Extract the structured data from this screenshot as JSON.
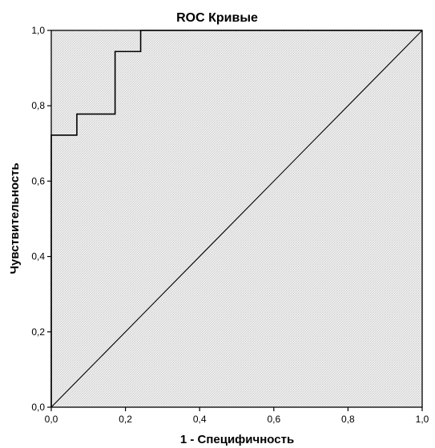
{
  "chart_data": {
    "type": "line",
    "title": "ROC Кривые",
    "xlabel": "1 - Специфичность",
    "ylabel": "Чувствительность",
    "xlim": [
      0,
      1
    ],
    "ylim": [
      0,
      1
    ],
    "x_ticks": [
      "0,0",
      "0,2",
      "0,4",
      "0,6",
      "0,8",
      "1,0"
    ],
    "y_ticks": [
      "0,0",
      "0,2",
      "0,4",
      "0,6",
      "0,8",
      "1,0"
    ],
    "grid": false,
    "legend": "none",
    "series": [
      {
        "style": "step",
        "x": [
          0.0,
          0.0,
          0.069,
          0.069,
          0.172,
          0.172,
          0.241,
          0.241,
          1.0
        ],
        "y": [
          0.0,
          0.722,
          0.722,
          0.778,
          0.778,
          0.944,
          0.944,
          1.0,
          1.0
        ]
      },
      {
        "style": "diagonal",
        "x": [
          0.0,
          1.0
        ],
        "y": [
          0.0,
          1.0
        ]
      }
    ],
    "colors": {
      "line": "#000000",
      "plot_background": "#e6e6e6"
    }
  }
}
